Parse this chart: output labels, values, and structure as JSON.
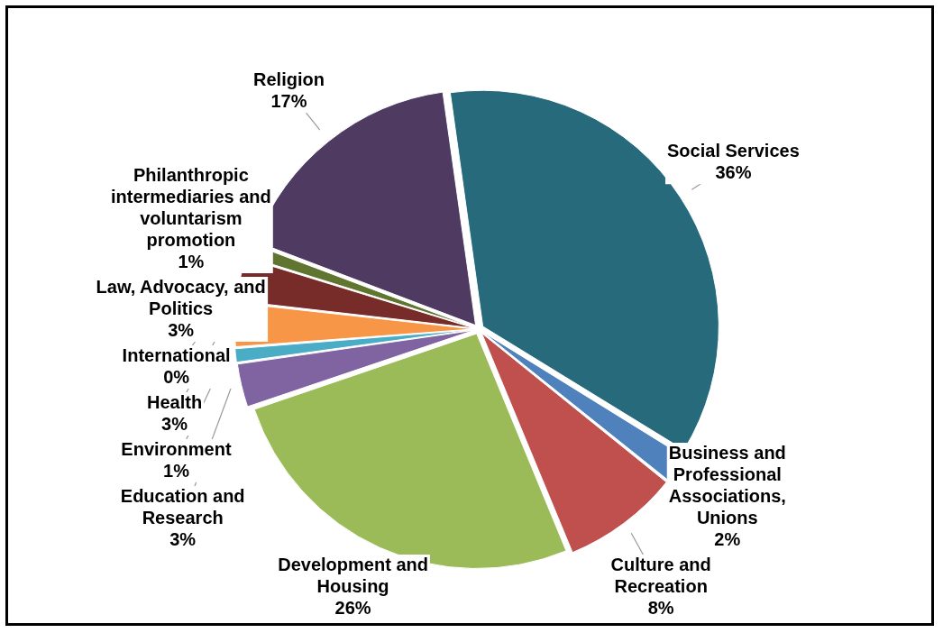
{
  "chart_data": {
    "type": "pie",
    "categories": [
      "Social Services",
      "Business and Professional Associations, Unions",
      "Culture and Recreation",
      "Development and Housing",
      "Education and Research",
      "Environment",
      "Health",
      "International",
      "Law, Advocacy, and Politics",
      "Philanthropic intermediaries and voluntarism promotion",
      "Religion"
    ],
    "values": [
      36,
      2,
      8,
      26,
      3,
      1,
      3,
      0,
      3,
      1,
      17
    ],
    "value_labels": [
      "36%",
      "2%",
      "8%",
      "26%",
      "3%",
      "1%",
      "3%",
      "0%",
      "3%",
      "1%",
      "17%"
    ],
    "colors": [
      "#276a7c",
      "#4f81bd",
      "#c0504d",
      "#9bbb59",
      "#8064a2",
      "#4bacc6",
      "#f79646",
      "#1f3864",
      "#772c2a",
      "#5f7530",
      "#4f3b62"
    ],
    "legend": false
  }
}
